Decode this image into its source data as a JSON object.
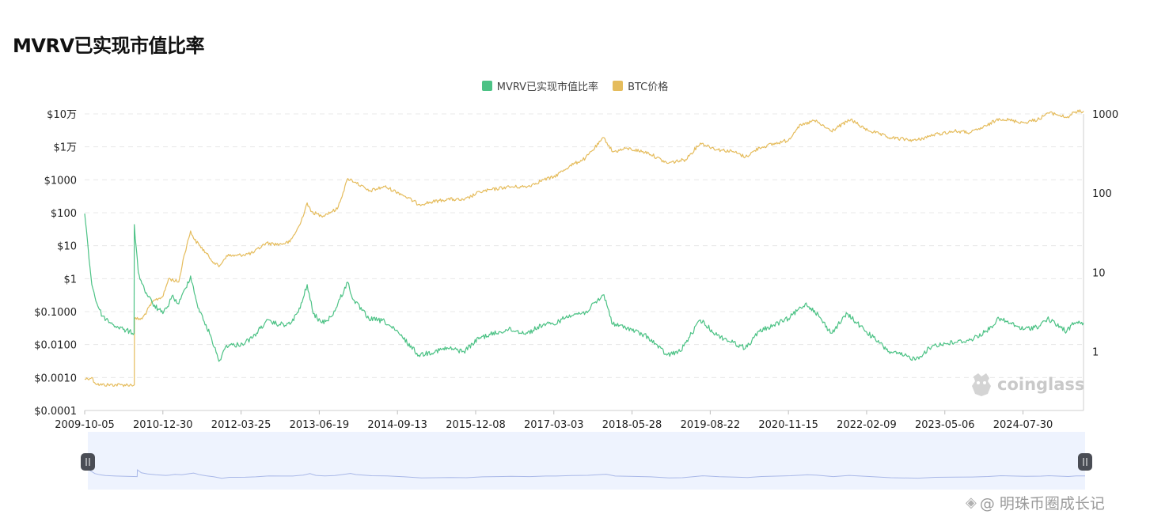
{
  "page": {
    "title": "MVRV已实现市值比率"
  },
  "legend": {
    "mvrv_label": "MVRV已实现市值比率",
    "btc_label": "BTC价格"
  },
  "watermark": {
    "brand": "coinglass",
    "footer": "@ 明珠币圈成长记"
  },
  "colors": {
    "mvrv": "#4cc285",
    "btc": "#e5bc5c",
    "zoom_fill": "#eef3fe",
    "zoom_line": "#a9b8e8"
  },
  "chart_data": {
    "type": "line",
    "title": "MVRV已实现市值比率",
    "x_tick_labels": [
      "2009-10-05",
      "2010-12-30",
      "2012-03-25",
      "2013-06-19",
      "2014-09-13",
      "2015-12-08",
      "2017-03-03",
      "2018-05-28",
      "2019-08-22",
      "2020-11-15",
      "2022-02-09",
      "2023-05-06",
      "2024-07-30"
    ],
    "left_axis": {
      "scale": "log",
      "tick_labels": [
        "$10万",
        "$1万",
        "$1000",
        "$100",
        "$10",
        "$1",
        "$0.1000",
        "$0.0100",
        "$0.0010",
        "$0.0001"
      ],
      "range": [
        0.0001,
        100000
      ]
    },
    "right_axis": {
      "scale": "log",
      "tick_labels": [
        "1000",
        "100",
        "10",
        "1"
      ],
      "range": [
        0.18,
        1000
      ]
    },
    "grid": "horizontal dashed",
    "legend_position": "top-center",
    "series": [
      {
        "name": "BTC价格",
        "axis": "left",
        "color": "#e5bc5c",
        "points": [
          [
            "2009-10-05",
            0.0009
          ],
          [
            "2009-11-15",
            0.001
          ],
          [
            "2009-12-01",
            0.0007
          ],
          [
            "2010-01-01",
            0.0006
          ],
          [
            "2010-05-01",
            0.0006
          ],
          [
            "2010-07-18",
            0.0006
          ],
          [
            "2010-07-19",
            0.06
          ],
          [
            "2010-09-01",
            0.06
          ],
          [
            "2010-11-01",
            0.2
          ],
          [
            "2011-01-01",
            0.3
          ],
          [
            "2011-02-01",
            1
          ],
          [
            "2011-04-01",
            0.8
          ],
          [
            "2011-05-01",
            5
          ],
          [
            "2011-06-08",
            28
          ],
          [
            "2011-07-01",
            15
          ],
          [
            "2011-08-01",
            10
          ],
          [
            "2011-10-01",
            4
          ],
          [
            "2011-11-18",
            2.3
          ],
          [
            "2012-01-01",
            5
          ],
          [
            "2012-03-01",
            5
          ],
          [
            "2012-06-01",
            6
          ],
          [
            "2012-08-15",
            12
          ],
          [
            "2012-11-01",
            11
          ],
          [
            "2013-01-01",
            13
          ],
          [
            "2013-03-01",
            45
          ],
          [
            "2013-04-10",
            200
          ],
          [
            "2013-05-01",
            110
          ],
          [
            "2013-07-01",
            80
          ],
          [
            "2013-10-01",
            130
          ],
          [
            "2013-12-01",
            1100
          ],
          [
            "2014-01-15",
            850
          ],
          [
            "2014-04-01",
            450
          ],
          [
            "2014-07-01",
            620
          ],
          [
            "2014-10-01",
            380
          ],
          [
            "2015-01-14",
            180
          ],
          [
            "2015-07-01",
            260
          ],
          [
            "2015-10-01",
            240
          ],
          [
            "2016-01-01",
            430
          ],
          [
            "2016-06-01",
            600
          ],
          [
            "2016-10-01",
            620
          ],
          [
            "2017-01-01",
            1000
          ],
          [
            "2017-03-01",
            1200
          ],
          [
            "2017-06-01",
            2600
          ],
          [
            "2017-09-01",
            4500
          ],
          [
            "2017-12-17",
            19000
          ],
          [
            "2018-02-06",
            7000
          ],
          [
            "2018-05-01",
            9000
          ],
          [
            "2018-09-01",
            6500
          ],
          [
            "2018-12-15",
            3200
          ],
          [
            "2019-04-01",
            4100
          ],
          [
            "2019-06-26",
            13000
          ],
          [
            "2019-10-01",
            8300
          ],
          [
            "2020-01-01",
            7200
          ],
          [
            "2020-03-12",
            4900
          ],
          [
            "2020-06-01",
            9500
          ],
          [
            "2020-11-15",
            16000
          ],
          [
            "2021-01-08",
            40000
          ],
          [
            "2021-04-14",
            63000
          ],
          [
            "2021-07-20",
            30000
          ],
          [
            "2021-11-10",
            68000
          ],
          [
            "2022-01-24",
            36000
          ],
          [
            "2022-06-18",
            19000
          ],
          [
            "2022-11-21",
            15600
          ],
          [
            "2023-03-01",
            23000
          ],
          [
            "2023-07-01",
            30000
          ],
          [
            "2023-10-01",
            27000
          ],
          [
            "2024-01-01",
            43000
          ],
          [
            "2024-03-14",
            73000
          ],
          [
            "2024-08-05",
            54000
          ],
          [
            "2024-11-01",
            70000
          ],
          [
            "2024-12-17",
            106000
          ],
          [
            "2025-02-01",
            100000
          ],
          [
            "2025-04-08",
            77000
          ],
          [
            "2025-05-22",
            111000
          ],
          [
            "2025-07-14",
            122000
          ]
        ]
      },
      {
        "name": "MVRV已实现市值比率",
        "axis": "right",
        "color": "#4cc285",
        "points": [
          [
            "2009-10-05",
            55
          ],
          [
            "2009-10-25",
            20
          ],
          [
            "2009-11-15",
            7
          ],
          [
            "2009-12-15",
            4
          ],
          [
            "2010-01-15",
            2.8
          ],
          [
            "2010-03-15",
            2.2
          ],
          [
            "2010-05-15",
            1.9
          ],
          [
            "2010-07-17",
            1.7
          ],
          [
            "2010-07-18",
            40
          ],
          [
            "2010-08-10",
            10
          ],
          [
            "2010-09-15",
            6
          ],
          [
            "2010-11-01",
            4
          ],
          [
            "2010-12-30",
            3
          ],
          [
            "2011-01-20",
            3.5
          ],
          [
            "2011-02-20",
            5
          ],
          [
            "2011-04-01",
            4
          ],
          [
            "2011-06-08",
            9
          ],
          [
            "2011-07-15",
            4
          ],
          [
            "2011-08-20",
            2.5
          ],
          [
            "2011-10-01",
            1.6
          ],
          [
            "2011-11-18",
            0.75
          ],
          [
            "2012-01-01",
            1.2
          ],
          [
            "2012-02-15",
            1.2
          ],
          [
            "2012-04-01",
            1.25
          ],
          [
            "2012-06-01",
            1.5
          ],
          [
            "2012-08-15",
            2.4
          ],
          [
            "2012-11-01",
            2.2
          ],
          [
            "2013-01-01",
            2.2
          ],
          [
            "2013-03-01",
            3.5
          ],
          [
            "2013-04-10",
            7
          ],
          [
            "2013-05-15",
            3
          ],
          [
            "2013-07-05",
            2.3
          ],
          [
            "2013-09-01",
            2.8
          ],
          [
            "2013-11-30",
            7.5
          ],
          [
            "2014-01-01",
            4.5
          ],
          [
            "2014-04-01",
            2.6
          ],
          [
            "2014-07-01",
            2.4
          ],
          [
            "2014-10-01",
            1.6
          ],
          [
            "2015-01-14",
            0.9
          ],
          [
            "2015-07-01",
            1.1
          ],
          [
            "2015-10-01",
            1.0
          ],
          [
            "2016-01-01",
            1.5
          ],
          [
            "2016-06-15",
            1.9
          ],
          [
            "2016-10-01",
            1.7
          ],
          [
            "2017-01-01",
            2.2
          ],
          [
            "2017-03-01",
            2.2
          ],
          [
            "2017-06-01",
            2.9
          ],
          [
            "2017-09-01",
            3.1
          ],
          [
            "2017-12-17",
            5.2
          ],
          [
            "2018-02-06",
            2.2
          ],
          [
            "2018-05-01",
            2.0
          ],
          [
            "2018-09-01",
            1.5
          ],
          [
            "2018-12-15",
            0.9
          ],
          [
            "2019-03-01",
            1.0
          ],
          [
            "2019-06-26",
            2.5
          ],
          [
            "2019-10-01",
            1.6
          ],
          [
            "2020-01-01",
            1.3
          ],
          [
            "2020-03-12",
            1.1
          ],
          [
            "2020-06-01",
            1.8
          ],
          [
            "2020-11-15",
            2.6
          ],
          [
            "2021-02-20",
            4.0
          ],
          [
            "2021-04-14",
            3.3
          ],
          [
            "2021-07-20",
            1.7
          ],
          [
            "2021-10-20",
            3.0
          ],
          [
            "2022-01-24",
            1.9
          ],
          [
            "2022-06-18",
            1.0
          ],
          [
            "2022-11-21",
            0.8
          ],
          [
            "2023-03-01",
            1.2
          ],
          [
            "2023-07-01",
            1.3
          ],
          [
            "2023-10-01",
            1.4
          ],
          [
            "2024-01-01",
            1.8
          ],
          [
            "2024-03-14",
            2.6
          ],
          [
            "2024-08-05",
            1.9
          ],
          [
            "2024-11-01",
            2.1
          ],
          [
            "2024-12-17",
            2.6
          ],
          [
            "2025-04-08",
            1.8
          ],
          [
            "2025-05-22",
            2.3
          ],
          [
            "2025-07-14",
            2.3
          ]
        ]
      }
    ]
  }
}
